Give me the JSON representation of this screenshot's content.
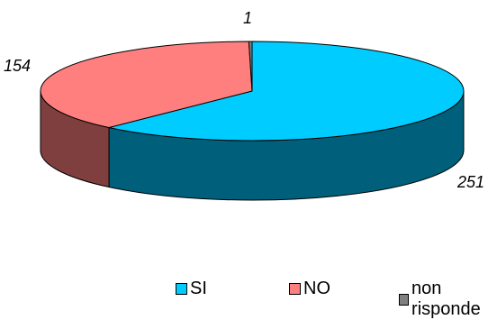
{
  "chart_data": {
    "type": "pie",
    "style": "3d",
    "categories": [
      "SI",
      "NO",
      "non risponde"
    ],
    "values": [
      251,
      154,
      1
    ],
    "colors": {
      "SI": {
        "top": "#00CCFF",
        "side": "#005F7A"
      },
      "NO": {
        "top": "#FF7F7F",
        "side": "#803F3F"
      },
      "non risponde": {
        "top": "#808080",
        "side": "#404040"
      }
    },
    "data_labels": [
      "251",
      "154",
      "1"
    ],
    "legend": {
      "placement": "bottom",
      "entries": [
        "SI",
        "NO",
        "non risponde"
      ]
    }
  }
}
